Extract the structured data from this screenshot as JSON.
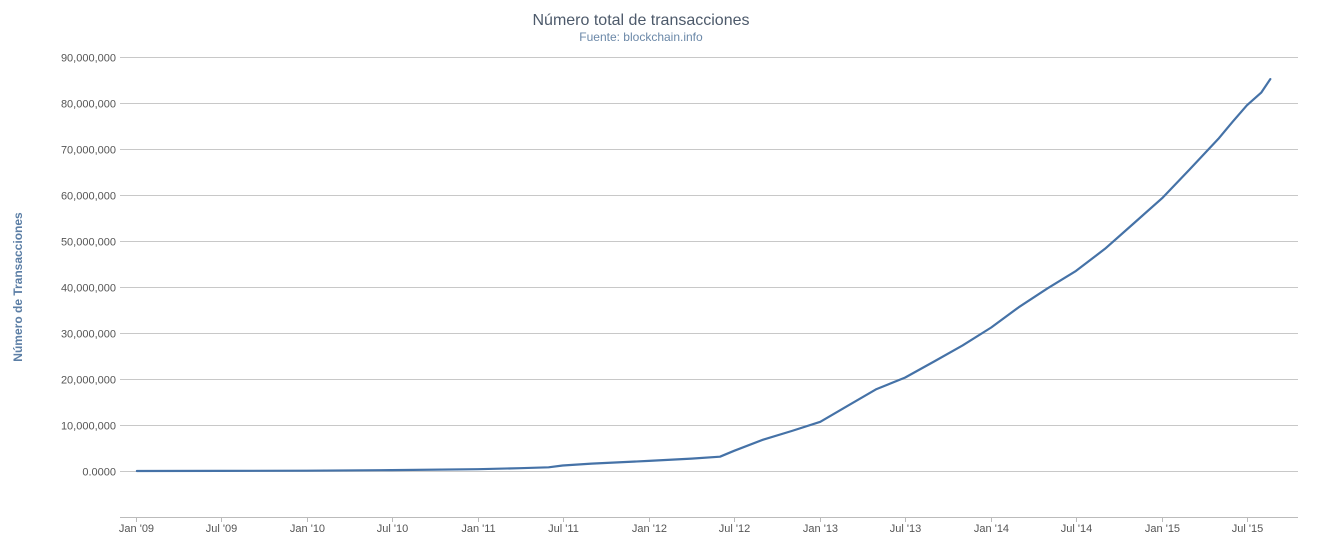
{
  "chart_data": {
    "type": "line",
    "title": "Número total de transacciones",
    "subtitle": "Fuente: blockchain.info",
    "xlabel": "",
    "ylabel": "Número de Transacciones",
    "x_range": [
      "2009-01-01",
      "2015-10-01"
    ],
    "ylim": [
      -10000000,
      90000000
    ],
    "grid": true,
    "colors": {
      "series": "#4572a7",
      "grid": "#c8c8c8"
    },
    "y_ticks": [
      {
        "value": 0,
        "label": "0.0000"
      },
      {
        "value": 10000000,
        "label": "10,000,000"
      },
      {
        "value": 20000000,
        "label": "20,000,000"
      },
      {
        "value": 30000000,
        "label": "30,000,000"
      },
      {
        "value": 40000000,
        "label": "40,000,000"
      },
      {
        "value": 50000000,
        "label": "50,000,000"
      },
      {
        "value": 60000000,
        "label": "60,000,000"
      },
      {
        "value": 70000000,
        "label": "70,000,000"
      },
      {
        "value": 80000000,
        "label": "80,000,000"
      },
      {
        "value": 90000000,
        "label": "90,000,000"
      }
    ],
    "x_ticks": [
      {
        "date": "2009-01-01",
        "label": "Jan '09"
      },
      {
        "date": "2009-07-01",
        "label": "Jul '09"
      },
      {
        "date": "2010-01-01",
        "label": "Jan '10"
      },
      {
        "date": "2010-07-01",
        "label": "Jul '10"
      },
      {
        "date": "2011-01-01",
        "label": "Jan '11"
      },
      {
        "date": "2011-07-01",
        "label": "Jul '11"
      },
      {
        "date": "2012-01-01",
        "label": "Jan '12"
      },
      {
        "date": "2012-07-01",
        "label": "Jul '12"
      },
      {
        "date": "2013-01-01",
        "label": "Jan '13"
      },
      {
        "date": "2013-07-01",
        "label": "Jul '13"
      },
      {
        "date": "2014-01-01",
        "label": "Jan '14"
      },
      {
        "date": "2014-07-01",
        "label": "Jul '14"
      },
      {
        "date": "2015-01-01",
        "label": "Jan '15"
      },
      {
        "date": "2015-07-01",
        "label": "Jul '15"
      }
    ],
    "series": [
      {
        "points": [
          [
            "2009-01-03",
            0
          ],
          [
            "2009-07-01",
            20000
          ],
          [
            "2010-01-01",
            60000
          ],
          [
            "2010-07-01",
            200000
          ],
          [
            "2011-01-01",
            400000
          ],
          [
            "2011-04-01",
            600000
          ],
          [
            "2011-06-01",
            800000
          ],
          [
            "2011-07-01",
            1200000
          ],
          [
            "2011-09-01",
            1600000
          ],
          [
            "2012-01-01",
            2200000
          ],
          [
            "2012-04-01",
            2700000
          ],
          [
            "2012-06-01",
            3100000
          ],
          [
            "2012-07-01",
            4400000
          ],
          [
            "2012-09-01",
            6800000
          ],
          [
            "2012-11-01",
            8700000
          ],
          [
            "2013-01-01",
            10700000
          ],
          [
            "2013-03-01",
            14200000
          ],
          [
            "2013-05-01",
            17800000
          ],
          [
            "2013-07-01",
            20300000
          ],
          [
            "2013-09-01",
            23800000
          ],
          [
            "2013-11-01",
            27300000
          ],
          [
            "2014-01-01",
            31200000
          ],
          [
            "2014-03-01",
            35600000
          ],
          [
            "2014-05-01",
            39700000
          ],
          [
            "2014-07-01",
            43500000
          ],
          [
            "2014-09-01",
            48300000
          ],
          [
            "2014-11-01",
            53800000
          ],
          [
            "2015-01-01",
            59300000
          ],
          [
            "2015-03-01",
            65600000
          ],
          [
            "2015-05-01",
            72200000
          ],
          [
            "2015-06-01",
            76000000
          ],
          [
            "2015-07-01",
            79500000
          ],
          [
            "2015-08-01",
            82300000
          ],
          [
            "2015-08-20",
            85200000
          ]
        ]
      }
    ]
  }
}
